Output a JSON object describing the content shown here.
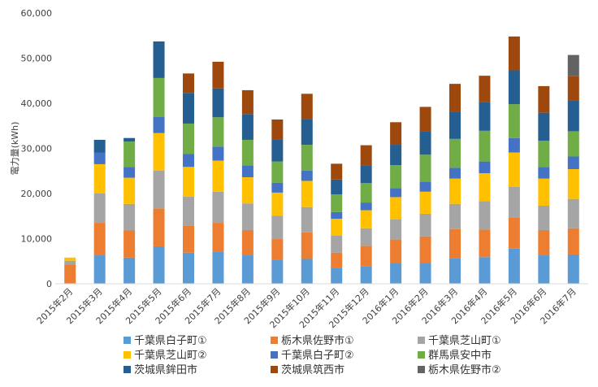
{
  "chart_data": {
    "type": "bar",
    "stacked": true,
    "ylabel": "電力量(kWh)",
    "ylim": [
      0,
      60000
    ],
    "yticks": [
      "0",
      "10,000",
      "20,000",
      "30,000",
      "40,000",
      "50,000",
      "60,000"
    ],
    "grid": false,
    "legend_position": "bottom",
    "categories": [
      "2015年2月",
      "2015年3月",
      "2015年4月",
      "2015年5月",
      "2015年6月",
      "2015年7月",
      "2015年8月",
      "2015年9月",
      "2015年10月",
      "2015年11月",
      "2015年12月",
      "2016年1月",
      "2016年2月",
      "2016年3月",
      "2016年4月",
      "2016年5月",
      "2016年6月",
      "2016年7月"
    ],
    "series": [
      {
        "name": "千葉県白子町①",
        "color": "#5B9BD5",
        "values": [
          0,
          6300,
          5800,
          8300,
          6900,
          7100,
          6300,
          5300,
          5500,
          3500,
          3800,
          4600,
          4600,
          5600,
          5900,
          7800,
          6300,
          6500
        ]
      },
      {
        "name": "栃木県佐野市①",
        "color": "#ED7D31",
        "values": [
          4300,
          7200,
          6000,
          8400,
          5900,
          6400,
          5600,
          4600,
          5900,
          3400,
          4600,
          5200,
          5900,
          6500,
          6100,
          6800,
          5600,
          5800
        ]
      },
      {
        "name": "千葉県芝山町①",
        "color": "#A5A5A5",
        "values": [
          800,
          6500,
          5900,
          8400,
          6500,
          6900,
          5900,
          5200,
          5600,
          3800,
          3900,
          4500,
          5000,
          5600,
          6300,
          6900,
          5400,
          6500
        ]
      },
      {
        "name": "千葉県芝山町②",
        "color": "#FFC000",
        "values": [
          700,
          6500,
          5800,
          8300,
          6600,
          6900,
          5800,
          5100,
          5800,
          3700,
          4000,
          4900,
          4900,
          5600,
          6200,
          7600,
          6000,
          6600
        ]
      },
      {
        "name": "千葉県白子町②",
        "color": "#4472C4",
        "values": [
          0,
          2600,
          2400,
          3600,
          2900,
          3100,
          2600,
          2200,
          2300,
          1500,
          1700,
          2000,
          2200,
          2400,
          2600,
          3200,
          2600,
          2800
        ]
      },
      {
        "name": "群馬県安中市",
        "color": "#70AD47",
        "values": [
          0,
          0,
          5600,
          8600,
          6700,
          6500,
          5700,
          4700,
          5700,
          3900,
          4300,
          5100,
          6000,
          6400,
          6800,
          7500,
          5800,
          5600
        ]
      },
      {
        "name": "茨城県鉾田市",
        "color": "#255E91",
        "values": [
          0,
          2800,
          800,
          8100,
          6800,
          6400,
          5700,
          4800,
          5700,
          3300,
          3900,
          4500,
          5200,
          6000,
          6300,
          7500,
          6200,
          6900
        ]
      },
      {
        "name": "茨城県筑西市",
        "color": "#9E480E",
        "values": [
          0,
          0,
          0,
          0,
          4300,
          5900,
          5300,
          4500,
          5600,
          3500,
          4500,
          5000,
          5400,
          6200,
          5900,
          7500,
          5900,
          5300
        ]
      },
      {
        "name": "栃木県佐野市②",
        "color": "#636363",
        "values": [
          0,
          0,
          0,
          0,
          0,
          0,
          0,
          0,
          0,
          0,
          0,
          0,
          0,
          0,
          0,
          0,
          0,
          4700
        ]
      }
    ]
  }
}
